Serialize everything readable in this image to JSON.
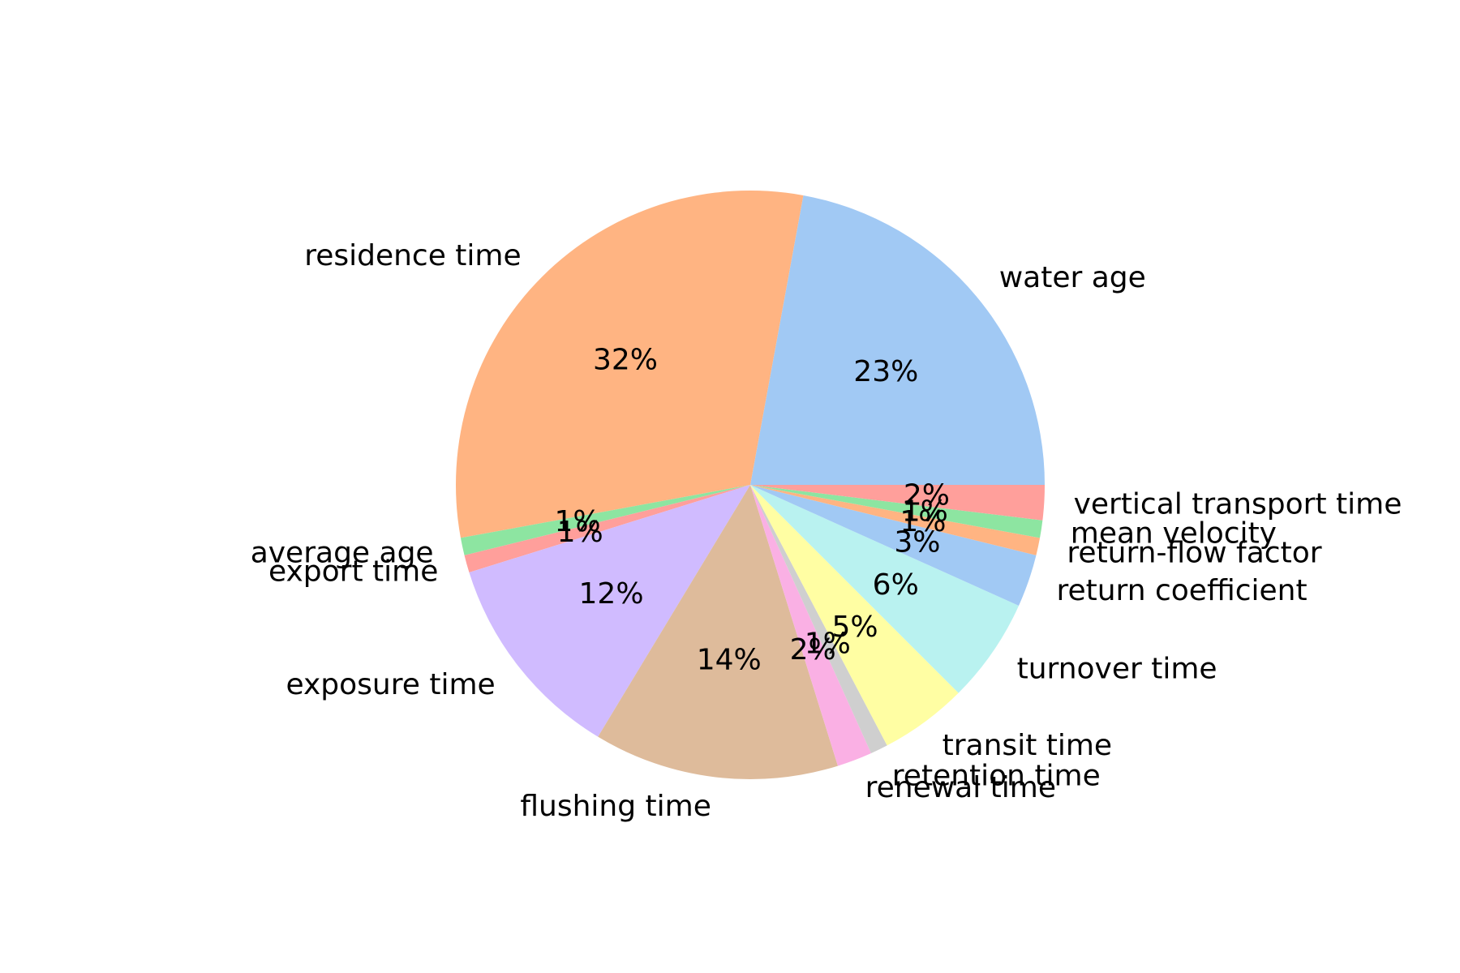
{
  "chart_data": {
    "type": "pie",
    "title": "",
    "start_angle_deg": 0,
    "direction": "counterclockwise",
    "slices": [
      {
        "label": "water age",
        "value": 23,
        "pct_label": "23%",
        "color": "#a1c9f4"
      },
      {
        "label": "residence time",
        "value": 32,
        "pct_label": "32%",
        "color": "#ffb482"
      },
      {
        "label": "average age",
        "value": 1,
        "pct_label": "1%",
        "color": "#8de5a1"
      },
      {
        "label": "export time",
        "value": 1,
        "pct_label": "1%",
        "color": "#ff9f9b"
      },
      {
        "label": "exposure time",
        "value": 12,
        "pct_label": "12%",
        "color": "#d0bbff"
      },
      {
        "label": "flushing time",
        "value": 14,
        "pct_label": "14%",
        "color": "#debb9b"
      },
      {
        "label": "renewal time",
        "value": 2,
        "pct_label": "2%",
        "color": "#fab0e4"
      },
      {
        "label": "retention time",
        "value": 1,
        "pct_label": "1%",
        "color": "#cfcfcf"
      },
      {
        "label": "transit time",
        "value": 5,
        "pct_label": "5%",
        "color": "#fffea3"
      },
      {
        "label": "turnover time",
        "value": 6,
        "pct_label": "6%",
        "color": "#b9f2f0"
      },
      {
        "label": "return coefficient",
        "value": 3,
        "pct_label": "3%",
        "color": "#a1c9f4"
      },
      {
        "label": "return-flow factor",
        "value": 1,
        "pct_label": "1%",
        "color": "#ffb482"
      },
      {
        "label": "mean velocity",
        "value": 1,
        "pct_label": "1%",
        "color": "#8de5a1"
      },
      {
        "label": "vertical transport time",
        "value": 2,
        "pct_label": "2%",
        "color": "#ff9f9b"
      }
    ]
  }
}
